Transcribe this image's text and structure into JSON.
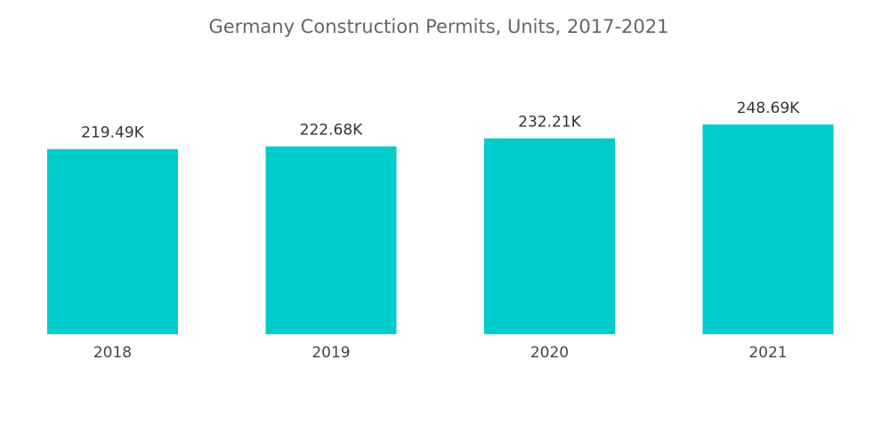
{
  "chart_data": {
    "type": "bar",
    "title": "Germany Construction Permits, Units, 2017-2021",
    "categories": [
      "2018",
      "2019",
      "2020",
      "2021"
    ],
    "values": [
      219.49,
      222.68,
      232.21,
      248.69
    ],
    "value_labels": [
      "219.49K",
      "222.68K",
      "232.21K",
      "248.69K"
    ],
    "color": "#00cccc"
  }
}
